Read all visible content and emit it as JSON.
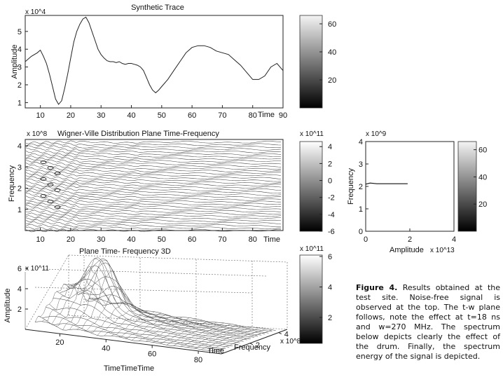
{
  "chart_data": [
    {
      "type": "line",
      "title": "Synthetic Trace",
      "ylabel": "Amplitude",
      "xlabel": "Time",
      "y_exponent": "x 10^4",
      "xlim": [
        5,
        90
      ],
      "ylim": [
        0.7,
        5.9
      ],
      "xticks": [
        10,
        20,
        30,
        40,
        50,
        60,
        70,
        80,
        90
      ],
      "yticks": [
        1,
        2,
        3,
        4,
        5
      ],
      "x": [
        5,
        7,
        9,
        10,
        11,
        12,
        13,
        14,
        15,
        16,
        17,
        18,
        19,
        20,
        21,
        22,
        23,
        24,
        25,
        26,
        27,
        28,
        29,
        30,
        31,
        32,
        33,
        34,
        35,
        36,
        37,
        38,
        39,
        40,
        41,
        42,
        43,
        44,
        45,
        46,
        47,
        48,
        49,
        50,
        52,
        54,
        56,
        58,
        60,
        62,
        64,
        66,
        68,
        70,
        72,
        74,
        76,
        78,
        80,
        82,
        84,
        86,
        88,
        90
      ],
      "values": [
        3.3,
        3.6,
        3.8,
        3.95,
        3.6,
        3.2,
        2.6,
        1.9,
        1.2,
        0.9,
        1.1,
        1.8,
        2.6,
        3.5,
        4.4,
        5.0,
        5.4,
        5.7,
        5.8,
        5.5,
        5.0,
        4.5,
        4.0,
        3.7,
        3.5,
        3.35,
        3.3,
        3.3,
        3.25,
        3.3,
        3.2,
        3.15,
        3.2,
        3.2,
        3.15,
        3.1,
        3.0,
        2.8,
        2.4,
        2.0,
        1.7,
        1.55,
        1.7,
        1.9,
        2.3,
        2.8,
        3.3,
        3.8,
        4.1,
        4.2,
        4.2,
        4.1,
        3.9,
        3.8,
        3.7,
        3.4,
        3.1,
        2.7,
        2.3,
        2.3,
        2.5,
        3.0,
        3.2,
        2.8
      ],
      "colorbar_ticks": [
        20,
        40,
        60
      ]
    },
    {
      "type": "heatmap",
      "title": "Wigner-Ville Distribution    Plane Time-Frequency",
      "ylabel": "Frequency",
      "xlabel": "Time",
      "y_exponent": "x 10^8",
      "xlim": [
        5,
        90
      ],
      "ylim": [
        0,
        4.3
      ],
      "xticks": [
        10,
        20,
        30,
        40,
        50,
        60,
        70,
        80
      ],
      "yticks": [
        1,
        2,
        3,
        4
      ],
      "colorbar_exponent": "x 10^11",
      "colorbar_ticks": [
        4,
        2,
        0,
        -2,
        -4,
        -6
      ]
    },
    {
      "type": "line",
      "ylabel": "Frequency",
      "xlabel": "Amplitude",
      "y_exponent": "x 10^9",
      "x_exponent": "x 10^13",
      "xlim": [
        0,
        4
      ],
      "ylim": [
        0,
        4
      ],
      "xticks": [
        0,
        2,
        4
      ],
      "yticks": [
        0,
        1,
        2,
        3,
        4
      ],
      "x": [
        0,
        0.2,
        0.5,
        1.0,
        1.5,
        1.9
      ],
      "values": [
        2.1,
        2.15,
        2.12,
        2.12,
        2.12,
        2.12
      ],
      "colorbar_ticks": [
        20,
        40,
        60
      ]
    },
    {
      "type": "area",
      "title": "Plane Time- Frequency  3D",
      "ylabel": "Amplitude",
      "xlabel": "TimeTimeTime",
      "z_exponent": "x 10^11",
      "axis_time_label": "Time",
      "axis_frequency_label": "Frequency",
      "frequency_exponent": "x 10^8",
      "time_ticks": [
        20,
        40,
        60,
        80
      ],
      "frequency_ticks": [
        2,
        4
      ],
      "zticks": [
        2,
        4,
        6
      ],
      "colorbar_exponent": "x 10^11",
      "colorbar_ticks": [
        6,
        4,
        2
      ]
    }
  ],
  "caption": {
    "lead": "Figure 4.",
    "text": "Results obtained at the test site. Noise-free signal is observed at the top. The t-w plane follows, note the effect at t=18 ns and w=270 MHz. The spectrum below depicts clearly the effect of the drum. Finally, the spectrum energy of the signal is depicted."
  }
}
